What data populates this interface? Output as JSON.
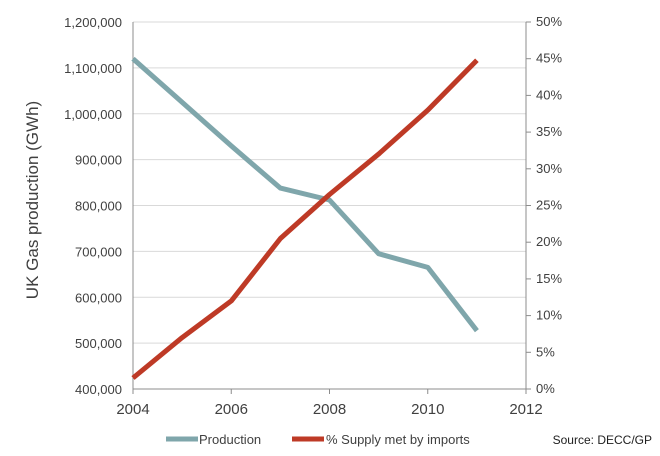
{
  "chart_data": {
    "type": "line",
    "title": "",
    "ylabel": "UK Gas  production (GWh)",
    "y2label": "",
    "xlim": [
      2004,
      2012
    ],
    "ylim": [
      400000,
      1200000
    ],
    "y2lim": [
      0,
      50
    ],
    "x_ticks": [
      "2004",
      "2006",
      "2008",
      "2010",
      "2012"
    ],
    "y_ticks": [
      "400,000",
      "500,000",
      "600,000",
      "700,000",
      "800,000",
      "900,000",
      "1,000,000",
      "1,100,000",
      "1,200,000"
    ],
    "y2_ticks": [
      "0%",
      "5%",
      "10%",
      "15%",
      "20%",
      "25%",
      "30%",
      "35%",
      "40%",
      "45%",
      "50%"
    ],
    "grid": "horizontal",
    "legend_position": "bottom",
    "source": "Source: DECC/GP",
    "series": [
      {
        "name": "Production",
        "axis": "left",
        "color": "#7FA6AB",
        "x": [
          2004,
          2005,
          2006,
          2007,
          2008,
          2009,
          2010,
          2011
        ],
        "values": [
          1120000,
          1025000,
          930000,
          838000,
          812000,
          695000,
          665000,
          527000
        ]
      },
      {
        "name": "% Supply met by imports",
        "axis": "right",
        "color": "#BE3A26",
        "x": [
          2004,
          2005,
          2006,
          2007,
          2008,
          2009,
          2010,
          2011
        ],
        "values": [
          1.5,
          7.0,
          12.0,
          20.5,
          26.5,
          32.0,
          38.0,
          44.8
        ]
      }
    ]
  }
}
